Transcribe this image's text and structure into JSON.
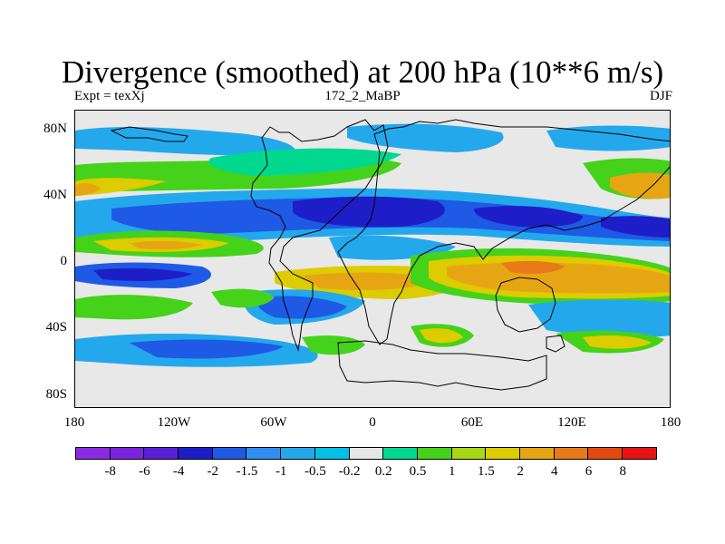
{
  "title": "Divergence (smoothed) at 200 hPa (10**6 m/s)",
  "subtitle_left": "Expt = texXj",
  "subtitle_center": "172_2_MaBP",
  "subtitle_right": "DJF",
  "lat_ticks": [
    "80N",
    "40N",
    "0",
    "40S",
    "80S"
  ],
  "lon_ticks": [
    "180",
    "120W",
    "60W",
    "0",
    "60E",
    "120E",
    "180"
  ],
  "colorbar": {
    "colors": [
      "#8a2be2",
      "#7a24e0",
      "#5a1fd9",
      "#1e1ec8",
      "#1e5ae6",
      "#2f8ef0",
      "#24a8ec",
      "#00c0e8",
      "#e6e6e6",
      "#00d890",
      "#45d21a",
      "#a8d814",
      "#dccc00",
      "#e6a614",
      "#e87a18",
      "#e44a10",
      "#e81414"
    ],
    "labels": [
      "-8",
      "-6",
      "-4",
      "-2",
      "-1.5",
      "-1",
      "-0.5",
      "-0.2",
      "0.2",
      "0.5",
      "1",
      "1.5",
      "2",
      "4",
      "6",
      "8"
    ]
  },
  "map_colors": {
    "background": "#e8e8e8",
    "strong_convergence": "#1e1ec8",
    "moderate_convergence": "#1e5ae6",
    "weak_convergence": "#24a8ec",
    "slight_convergence": "#00c0e8",
    "slight_divergence": "#00d890",
    "weak_divergence": "#45d21a",
    "moderate_divergence": "#dccc00",
    "strong_divergence": "#e6a614",
    "peak_divergence": "#e87a18"
  }
}
